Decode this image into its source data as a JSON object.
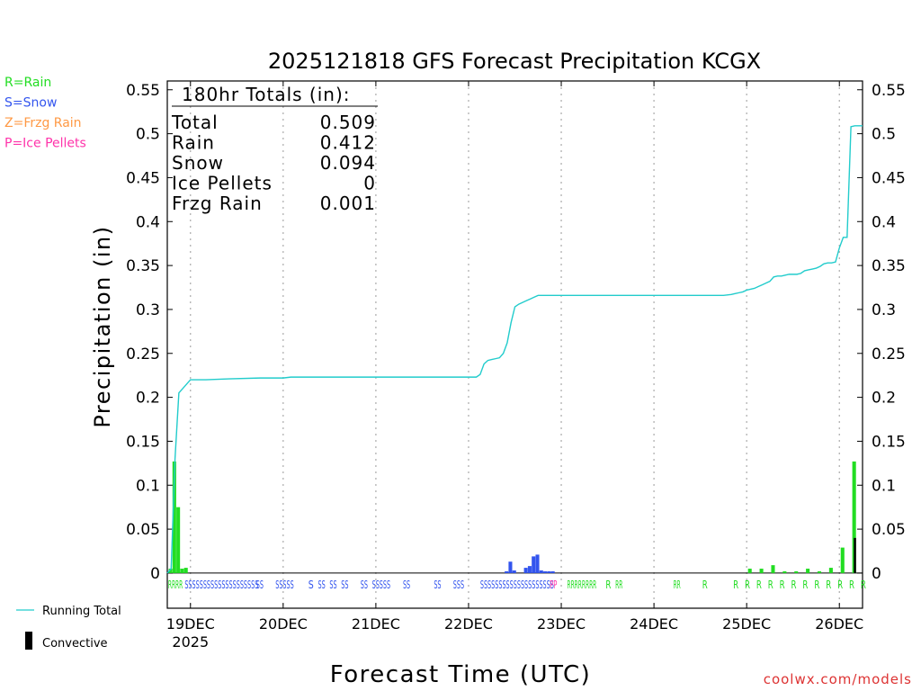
{
  "chart_data": {
    "type": "bar",
    "title": "2025121818 GFS Forecast Precipitation KCGX",
    "xlabel": "Forecast Time (UTC)",
    "ylabel": "Precipitation (in)",
    "ylim": [
      -0.04,
      0.56
    ],
    "xlim_hours": [
      0,
      180
    ],
    "y_ticks": [
      "0",
      "0.05",
      "0.1",
      "0.15",
      "0.2",
      "0.25",
      "0.3",
      "0.35",
      "0.4",
      "0.45",
      "0.5",
      "0.55"
    ],
    "y_tick_values": [
      0,
      0.05,
      0.1,
      0.15,
      0.2,
      0.25,
      0.3,
      0.35,
      0.4,
      0.45,
      0.5,
      0.55
    ],
    "x_ticks": [
      {
        "hour": 6,
        "label": "19DEC",
        "sublabel": "2025"
      },
      {
        "hour": 30,
        "label": "20DEC",
        "sublabel": ""
      },
      {
        "hour": 54,
        "label": "21DEC",
        "sublabel": ""
      },
      {
        "hour": 78,
        "label": "22DEC",
        "sublabel": ""
      },
      {
        "hour": 102,
        "label": "23DEC",
        "sublabel": ""
      },
      {
        "hour": 126,
        "label": "24DEC",
        "sublabel": ""
      },
      {
        "hour": 150,
        "label": "25DEC",
        "sublabel": ""
      },
      {
        "hour": 174,
        "label": "26DEC",
        "sublabel": ""
      }
    ],
    "totals_box": {
      "heading": "180hr Totals (in):",
      "rows": [
        {
          "label": "Total",
          "value": "0.509"
        },
        {
          "label": "Rain",
          "value": "0.412"
        },
        {
          "label": "Snow",
          "value": "0.094"
        },
        {
          "label": "Ice Pellets",
          "value": "0"
        },
        {
          "label": "Frzg Rain",
          "value": "0.001"
        }
      ]
    },
    "type_legend": [
      {
        "label": "R=Rain",
        "color": "#22dd22"
      },
      {
        "label": "S=Snow",
        "color": "#3355ee"
      },
      {
        "label": "Z=Frzg Rain",
        "color": "#ff9944"
      },
      {
        "label": "P=Ice Pellets",
        "color": "#ff33aa"
      }
    ],
    "line_legend": {
      "running_total": "Running Total",
      "convective": "Convective"
    },
    "series": [
      {
        "name": "Running Total",
        "color": "#22cccc",
        "x": [
          0,
          1,
          2,
          3,
          4,
          5,
          6,
          10,
          16,
          24,
          30,
          32,
          36,
          48,
          60,
          72,
          78,
          80,
          81,
          82,
          83,
          84,
          85,
          86,
          87,
          88,
          89,
          90,
          91,
          92,
          93,
          94,
          95,
          96,
          98,
          100,
          102,
          108,
          120,
          132,
          144,
          146,
          147,
          148,
          149,
          150,
          151,
          152,
          153,
          154,
          155,
          156,
          157,
          158,
          159,
          160,
          161,
          162,
          163,
          164,
          165,
          166,
          167,
          168,
          169,
          170,
          171,
          172,
          173,
          174,
          175,
          176,
          177,
          178,
          179,
          180
        ],
        "values": [
          0.0,
          0.005,
          0.13,
          0.205,
          0.21,
          0.215,
          0.22,
          0.22,
          0.221,
          0.222,
          0.222,
          0.223,
          0.223,
          0.223,
          0.223,
          0.223,
          0.223,
          0.223,
          0.226,
          0.238,
          0.242,
          0.243,
          0.244,
          0.245,
          0.25,
          0.262,
          0.285,
          0.303,
          0.306,
          0.308,
          0.31,
          0.312,
          0.314,
          0.316,
          0.316,
          0.316,
          0.316,
          0.316,
          0.316,
          0.316,
          0.316,
          0.317,
          0.318,
          0.319,
          0.32,
          0.322,
          0.323,
          0.324,
          0.326,
          0.328,
          0.33,
          0.332,
          0.337,
          0.338,
          0.338,
          0.339,
          0.34,
          0.34,
          0.34,
          0.341,
          0.344,
          0.345,
          0.346,
          0.347,
          0.349,
          0.352,
          0.353,
          0.353,
          0.354,
          0.37,
          0.382,
          0.382,
          0.508,
          0.509,
          0.509,
          0.509
        ]
      }
    ],
    "bars": [
      {
        "hour": 0,
        "value": 0.005,
        "type": "rain"
      },
      {
        "hour": 1,
        "value": 0.127,
        "type": "rain"
      },
      {
        "hour": 2,
        "value": 0.075,
        "type": "rain"
      },
      {
        "hour": 3,
        "value": 0.005,
        "type": "rain"
      },
      {
        "hour": 4,
        "value": 0.006,
        "type": "rain"
      },
      {
        "hour": 87,
        "value": 0.002,
        "type": "snow"
      },
      {
        "hour": 88,
        "value": 0.013,
        "type": "snow"
      },
      {
        "hour": 89,
        "value": 0.003,
        "type": "snow"
      },
      {
        "hour": 92,
        "value": 0.006,
        "type": "snow"
      },
      {
        "hour": 93,
        "value": 0.008,
        "type": "snow"
      },
      {
        "hour": 94,
        "value": 0.019,
        "type": "snow"
      },
      {
        "hour": 95,
        "value": 0.021,
        "type": "snow"
      },
      {
        "hour": 96,
        "value": 0.003,
        "type": "snow"
      },
      {
        "hour": 97,
        "value": 0.002,
        "type": "snow"
      },
      {
        "hour": 98,
        "value": 0.002,
        "type": "snow"
      },
      {
        "hour": 99,
        "value": 0.002,
        "type": "snow"
      },
      {
        "hour": 150,
        "value": 0.005,
        "type": "rain"
      },
      {
        "hour": 153,
        "value": 0.005,
        "type": "rain"
      },
      {
        "hour": 156,
        "value": 0.009,
        "type": "rain"
      },
      {
        "hour": 159,
        "value": 0.002,
        "type": "rain"
      },
      {
        "hour": 162,
        "value": 0.002,
        "type": "rain"
      },
      {
        "hour": 165,
        "value": 0.005,
        "type": "rain"
      },
      {
        "hour": 168,
        "value": 0.002,
        "type": "rain"
      },
      {
        "hour": 171,
        "value": 0.006,
        "type": "rain"
      },
      {
        "hour": 174,
        "value": 0.029,
        "type": "rain"
      },
      {
        "hour": 177,
        "value": 0.127,
        "type": "rain"
      },
      {
        "hour": 177.4,
        "value": 0.04,
        "type": "convective"
      }
    ],
    "type_markers": [
      {
        "text": "RRRR",
        "hour": 0.2,
        "type": "rain"
      },
      {
        "text": "SSSSSSSSSSSSSSSSSSSS",
        "hour": 4.5,
        "type": "snow"
      },
      {
        "text": "SS",
        "hour": 23,
        "type": "snow"
      },
      {
        "text": "SSSSS",
        "hour": 28,
        "type": "snow"
      },
      {
        "text": "S",
        "hour": 36.5,
        "type": "snow"
      },
      {
        "text": "SS",
        "hour": 39,
        "type": "snow"
      },
      {
        "text": "SS",
        "hour": 42,
        "type": "snow"
      },
      {
        "text": "SS",
        "hour": 45,
        "type": "snow"
      },
      {
        "text": "SS",
        "hour": 50,
        "type": "snow"
      },
      {
        "text": "SSSSS",
        "hour": 53,
        "type": "snow"
      },
      {
        "text": "SS",
        "hour": 61,
        "type": "snow"
      },
      {
        "text": "SS",
        "hour": 69,
        "type": "snow"
      },
      {
        "text": "SSS",
        "hour": 74,
        "type": "snow"
      },
      {
        "text": "SSSSSSSSSSSSSSSSSSSS",
        "hour": 81,
        "type": "snow"
      },
      {
        "text": "PP",
        "hour": 99,
        "type": "pellets"
      },
      {
        "text": "RRRRRRRR",
        "hour": 103.5,
        "type": "rain"
      },
      {
        "text": "R",
        "hour": 113.5,
        "type": "rain"
      },
      {
        "text": "RR",
        "hour": 116,
        "type": "rain"
      },
      {
        "text": "RR",
        "hour": 131,
        "type": "rain"
      },
      {
        "text": "R",
        "hour": 138.5,
        "type": "rain"
      },
      {
        "text": "R",
        "hour": 146.5,
        "type": "rain"
      },
      {
        "text": "R",
        "hour": 149.5,
        "type": "rain"
      },
      {
        "text": "R",
        "hour": 152.5,
        "type": "rain"
      },
      {
        "text": "R",
        "hour": 155.5,
        "type": "rain"
      },
      {
        "text": "R",
        "hour": 158.5,
        "type": "rain"
      },
      {
        "text": "R",
        "hour": 161.5,
        "type": "rain"
      },
      {
        "text": "R",
        "hour": 164.5,
        "type": "rain"
      },
      {
        "text": "R",
        "hour": 167.5,
        "type": "rain"
      },
      {
        "text": "R",
        "hour": 170.5,
        "type": "rain"
      },
      {
        "text": "R",
        "hour": 173.5,
        "type": "rain"
      },
      {
        "text": "R",
        "hour": 176.5,
        "type": "rain"
      },
      {
        "text": "R",
        "hour": 179.5,
        "type": "rain"
      }
    ],
    "colors": {
      "rain": "#22dd22",
      "snow": "#3355ee",
      "pellets": "#ff33aa",
      "freezing": "#ff9944",
      "convective": "#000000",
      "running_total": "#22cccc",
      "grid": "#aaaaaa",
      "credit": "#dd3333"
    }
  },
  "footer": {
    "credit": "coolwx.com/models"
  }
}
